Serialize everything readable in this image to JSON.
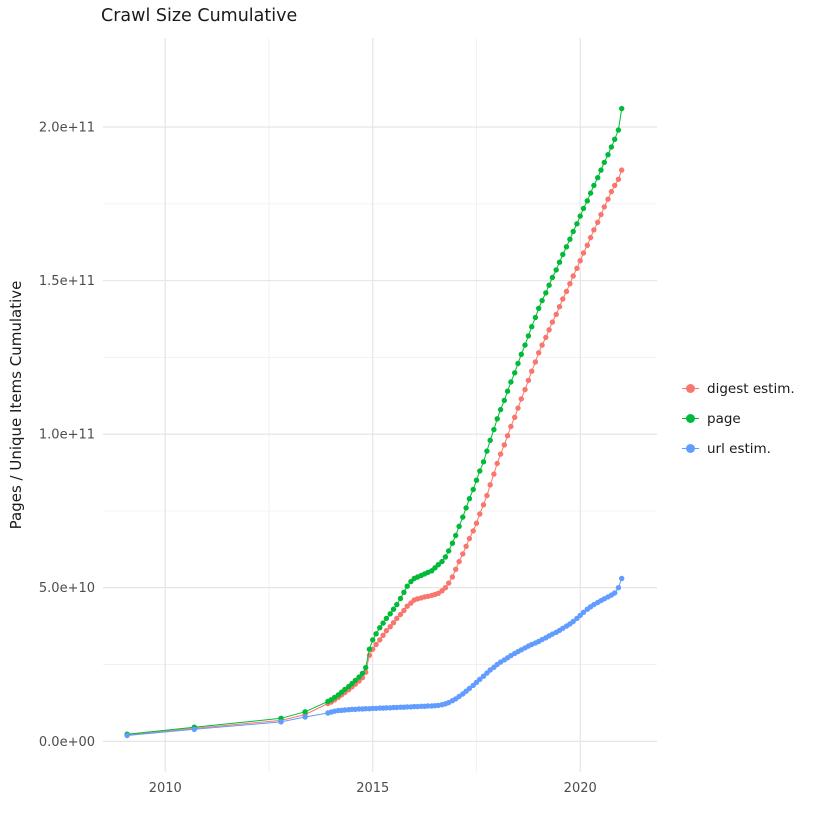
{
  "page": {
    "background": "#ffffff"
  },
  "chart_data": {
    "type": "scatter",
    "title": "Crawl Size Cumulative",
    "xlabel": "",
    "ylabel": "Pages / Unique Items Cumulative",
    "legend_position": "right",
    "grid": true,
    "grid_major_color": "#e3e3e3",
    "grid_minor_color": "#f0f0f0",
    "tick_label_color": "#4d4d4d",
    "x_domain": [
      2008.5,
      2021.85
    ],
    "y_domain": [
      -10000000000.0,
      229000000000.0
    ],
    "x_ticks": [
      {
        "value": 2010,
        "label": "2010"
      },
      {
        "value": 2015,
        "label": "2015"
      },
      {
        "value": 2020,
        "label": "2020"
      }
    ],
    "x_minor_ticks": [
      2012.5,
      2017.5
    ],
    "y_ticks": [
      {
        "value": 0,
        "label": "0.0e+00"
      },
      {
        "value": 50000000000.0,
        "label": "5.0e+10"
      },
      {
        "value": 100000000000.0,
        "label": "1.0e+11"
      },
      {
        "value": 150000000000.0,
        "label": "1.5e+11"
      },
      {
        "value": 200000000000.0,
        "label": "2.0e+11"
      }
    ],
    "y_minor_ticks": [
      25000000000.0,
      75000000000.0,
      125000000000.0,
      175000000000.0
    ],
    "values_unit": 1000000000.0,
    "series": [
      {
        "id": "digest-estim",
        "name": "digest estim.",
        "color": "#F8766D",
        "points": [
          [
            2009.08,
            2.0
          ],
          [
            2010.7,
            4.2
          ],
          [
            2012.79,
            6.8
          ],
          [
            2013.37,
            8.7
          ],
          [
            2013.92,
            12.3
          ],
          [
            2014.0,
            12.8
          ],
          [
            2014.08,
            13.5
          ],
          [
            2014.17,
            14.3
          ],
          [
            2014.25,
            15.1
          ],
          [
            2014.33,
            15.9
          ],
          [
            2014.42,
            16.8
          ],
          [
            2014.5,
            17.7
          ],
          [
            2014.58,
            18.6
          ],
          [
            2014.67,
            19.6
          ],
          [
            2014.75,
            20.7
          ],
          [
            2014.83,
            22.5
          ],
          [
            2014.92,
            28
          ],
          [
            2015.0,
            30
          ],
          [
            2015.08,
            31.5
          ],
          [
            2015.17,
            33
          ],
          [
            2015.25,
            34.5
          ],
          [
            2015.33,
            36
          ],
          [
            2015.42,
            37.3
          ],
          [
            2015.5,
            38.6
          ],
          [
            2015.58,
            40
          ],
          [
            2015.67,
            41.3
          ],
          [
            2015.75,
            42.6
          ],
          [
            2015.83,
            44
          ],
          [
            2015.92,
            45
          ],
          [
            2016.0,
            46
          ],
          [
            2016.08,
            46.4
          ],
          [
            2016.17,
            46.7
          ],
          [
            2016.25,
            47
          ],
          [
            2016.33,
            47.2
          ],
          [
            2016.42,
            47.5
          ],
          [
            2016.5,
            47.8
          ],
          [
            2016.58,
            48.2
          ],
          [
            2016.67,
            49
          ],
          [
            2016.75,
            50
          ],
          [
            2016.83,
            51.5
          ],
          [
            2016.92,
            53.5
          ],
          [
            2017.0,
            56
          ],
          [
            2017.08,
            58.5
          ],
          [
            2017.17,
            61
          ],
          [
            2017.25,
            63.5
          ],
          [
            2017.33,
            66
          ],
          [
            2017.42,
            68.5
          ],
          [
            2017.5,
            71
          ],
          [
            2017.58,
            74
          ],
          [
            2017.67,
            77
          ],
          [
            2017.75,
            80
          ],
          [
            2017.83,
            83.5
          ],
          [
            2017.92,
            87
          ],
          [
            2018.0,
            90.5
          ],
          [
            2018.08,
            93.5
          ],
          [
            2018.17,
            96.5
          ],
          [
            2018.25,
            99.5
          ],
          [
            2018.33,
            102.5
          ],
          [
            2018.42,
            105.5
          ],
          [
            2018.5,
            108.5
          ],
          [
            2018.58,
            111.5
          ],
          [
            2018.67,
            114.5
          ],
          [
            2018.75,
            117.5
          ],
          [
            2018.83,
            120.5
          ],
          [
            2018.92,
            123.5
          ],
          [
            2019.0,
            126.5
          ],
          [
            2019.08,
            129
          ],
          [
            2019.17,
            131.5
          ],
          [
            2019.25,
            134
          ],
          [
            2019.33,
            136.5
          ],
          [
            2019.42,
            139
          ],
          [
            2019.5,
            141.5
          ],
          [
            2019.58,
            144
          ],
          [
            2019.67,
            146.5
          ],
          [
            2019.75,
            149
          ],
          [
            2019.83,
            151.5
          ],
          [
            2019.92,
            154
          ],
          [
            2020.0,
            156.5
          ],
          [
            2020.08,
            159
          ],
          [
            2020.17,
            161.5
          ],
          [
            2020.25,
            164
          ],
          [
            2020.33,
            166.5
          ],
          [
            2020.42,
            169
          ],
          [
            2020.5,
            171.5
          ],
          [
            2020.58,
            174
          ],
          [
            2020.67,
            176.5
          ],
          [
            2020.75,
            179
          ],
          [
            2020.83,
            181
          ],
          [
            2020.92,
            183
          ],
          [
            2021.0,
            186
          ]
        ]
      },
      {
        "id": "page",
        "name": "page",
        "color": "#00BA38",
        "points": [
          [
            2009.08,
            2.3
          ],
          [
            2010.7,
            4.6
          ],
          [
            2012.79,
            7.5
          ],
          [
            2013.37,
            9.6
          ],
          [
            2013.92,
            13
          ],
          [
            2014.0,
            13.5
          ],
          [
            2014.08,
            14.3
          ],
          [
            2014.17,
            15.1
          ],
          [
            2014.25,
            16
          ],
          [
            2014.33,
            16.9
          ],
          [
            2014.42,
            17.8
          ],
          [
            2014.5,
            18.8
          ],
          [
            2014.58,
            19.8
          ],
          [
            2014.67,
            20.9
          ],
          [
            2014.75,
            22.1
          ],
          [
            2014.83,
            24
          ],
          [
            2014.92,
            30
          ],
          [
            2015.0,
            33
          ],
          [
            2015.08,
            35
          ],
          [
            2015.17,
            37
          ],
          [
            2015.25,
            38.5
          ],
          [
            2015.33,
            40
          ],
          [
            2015.42,
            41.5
          ],
          [
            2015.5,
            43
          ],
          [
            2015.58,
            44.5
          ],
          [
            2015.67,
            46.5
          ],
          [
            2015.75,
            48.5
          ],
          [
            2015.83,
            50.5
          ],
          [
            2015.92,
            52
          ],
          [
            2016.0,
            53
          ],
          [
            2016.08,
            53.5
          ],
          [
            2016.17,
            54
          ],
          [
            2016.25,
            54.5
          ],
          [
            2016.33,
            55
          ],
          [
            2016.42,
            55.5
          ],
          [
            2016.5,
            56.5
          ],
          [
            2016.58,
            57.5
          ],
          [
            2016.67,
            58.5
          ],
          [
            2016.75,
            60
          ],
          [
            2016.83,
            62
          ],
          [
            2016.92,
            64.5
          ],
          [
            2017.0,
            67
          ],
          [
            2017.08,
            70
          ],
          [
            2017.17,
            73
          ],
          [
            2017.25,
            76
          ],
          [
            2017.33,
            79
          ],
          [
            2017.42,
            82
          ],
          [
            2017.5,
            85
          ],
          [
            2017.58,
            88
          ],
          [
            2017.67,
            91
          ],
          [
            2017.75,
            94.5
          ],
          [
            2017.83,
            98
          ],
          [
            2017.92,
            101.5
          ],
          [
            2018.0,
            105
          ],
          [
            2018.08,
            108
          ],
          [
            2018.17,
            111
          ],
          [
            2018.25,
            114
          ],
          [
            2018.33,
            117
          ],
          [
            2018.42,
            120
          ],
          [
            2018.5,
            123
          ],
          [
            2018.58,
            126
          ],
          [
            2018.67,
            129
          ],
          [
            2018.75,
            132
          ],
          [
            2018.83,
            135
          ],
          [
            2018.92,
            138
          ],
          [
            2019.0,
            141
          ],
          [
            2019.08,
            143.5
          ],
          [
            2019.17,
            146
          ],
          [
            2019.25,
            148.5
          ],
          [
            2019.33,
            151
          ],
          [
            2019.42,
            153.5
          ],
          [
            2019.5,
            156
          ],
          [
            2019.58,
            158.5
          ],
          [
            2019.67,
            161
          ],
          [
            2019.75,
            163.5
          ],
          [
            2019.83,
            166
          ],
          [
            2019.92,
            168.5
          ],
          [
            2020.0,
            171
          ],
          [
            2020.08,
            173.5
          ],
          [
            2020.17,
            176
          ],
          [
            2020.25,
            178.5
          ],
          [
            2020.33,
            181
          ],
          [
            2020.42,
            183.5
          ],
          [
            2020.5,
            186
          ],
          [
            2020.58,
            188.5
          ],
          [
            2020.67,
            191
          ],
          [
            2020.75,
            193.5
          ],
          [
            2020.83,
            196
          ],
          [
            2020.92,
            199
          ],
          [
            2021.0,
            206
          ]
        ]
      },
      {
        "id": "url-estim",
        "name": "url estim.",
        "color": "#619CFF",
        "points": [
          [
            2009.08,
            1.9
          ],
          [
            2010.7,
            3.9
          ],
          [
            2012.79,
            6.3
          ],
          [
            2013.37,
            7.9
          ],
          [
            2013.92,
            9.2
          ],
          [
            2014.0,
            9.5
          ],
          [
            2014.08,
            9.8
          ],
          [
            2014.17,
            10
          ],
          [
            2014.25,
            10.1
          ],
          [
            2014.33,
            10.2
          ],
          [
            2014.42,
            10.3
          ],
          [
            2014.5,
            10.4
          ],
          [
            2014.58,
            10.4
          ],
          [
            2014.67,
            10.5
          ],
          [
            2014.75,
            10.5
          ],
          [
            2014.83,
            10.6
          ],
          [
            2014.92,
            10.6
          ],
          [
            2015.0,
            10.7
          ],
          [
            2015.08,
            10.7
          ],
          [
            2015.17,
            10.8
          ],
          [
            2015.25,
            10.8
          ],
          [
            2015.33,
            10.9
          ],
          [
            2015.42,
            10.9
          ],
          [
            2015.5,
            11
          ],
          [
            2015.58,
            11
          ],
          [
            2015.67,
            11.1
          ],
          [
            2015.75,
            11.1
          ],
          [
            2015.83,
            11.2
          ],
          [
            2015.92,
            11.2
          ],
          [
            2016.0,
            11.3
          ],
          [
            2016.08,
            11.3
          ],
          [
            2016.17,
            11.4
          ],
          [
            2016.25,
            11.4
          ],
          [
            2016.33,
            11.5
          ],
          [
            2016.42,
            11.5
          ],
          [
            2016.5,
            11.6
          ],
          [
            2016.58,
            11.7
          ],
          [
            2016.67,
            11.9
          ],
          [
            2016.75,
            12.2
          ],
          [
            2016.83,
            12.6
          ],
          [
            2016.92,
            13.2
          ],
          [
            2017.0,
            13.8
          ],
          [
            2017.08,
            14.6
          ],
          [
            2017.17,
            15.4
          ],
          [
            2017.25,
            16.3
          ],
          [
            2017.33,
            17.2
          ],
          [
            2017.42,
            18.2
          ],
          [
            2017.5,
            19.2
          ],
          [
            2017.58,
            20.2
          ],
          [
            2017.67,
            21.2
          ],
          [
            2017.75,
            22.2
          ],
          [
            2017.83,
            23.2
          ],
          [
            2017.92,
            24.1
          ],
          [
            2018.0,
            25
          ],
          [
            2018.08,
            25.8
          ],
          [
            2018.17,
            26.5
          ],
          [
            2018.25,
            27.2
          ],
          [
            2018.33,
            27.9
          ],
          [
            2018.42,
            28.6
          ],
          [
            2018.5,
            29.2
          ],
          [
            2018.58,
            29.8
          ],
          [
            2018.67,
            30.4
          ],
          [
            2018.75,
            31
          ],
          [
            2018.83,
            31.5
          ],
          [
            2018.92,
            32
          ],
          [
            2019.0,
            32.5
          ],
          [
            2019.08,
            33.1
          ],
          [
            2019.17,
            33.7
          ],
          [
            2019.25,
            34.3
          ],
          [
            2019.33,
            34.9
          ],
          [
            2019.42,
            35.5
          ],
          [
            2019.5,
            36.1
          ],
          [
            2019.58,
            36.8
          ],
          [
            2019.67,
            37.5
          ],
          [
            2019.75,
            38.2
          ],
          [
            2019.83,
            39
          ],
          [
            2019.92,
            40
          ],
          [
            2020.0,
            41
          ],
          [
            2020.08,
            42
          ],
          [
            2020.17,
            43
          ],
          [
            2020.25,
            43.8
          ],
          [
            2020.33,
            44.5
          ],
          [
            2020.42,
            45.2
          ],
          [
            2020.5,
            45.8
          ],
          [
            2020.58,
            46.4
          ],
          [
            2020.67,
            47
          ],
          [
            2020.75,
            47.6
          ],
          [
            2020.83,
            48.3
          ],
          [
            2020.92,
            50
          ],
          [
            2021.0,
            53
          ]
        ]
      }
    ]
  }
}
